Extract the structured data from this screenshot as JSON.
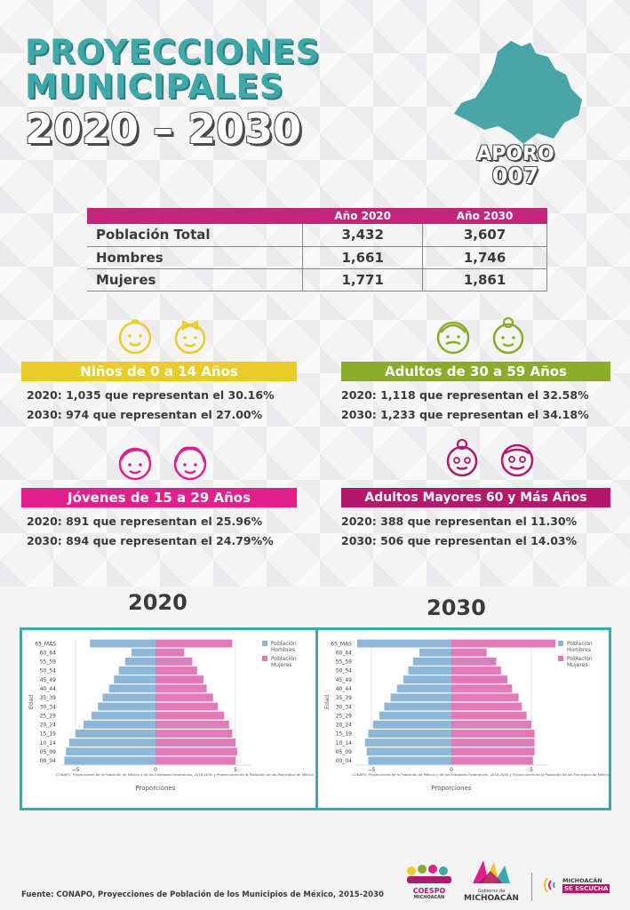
{
  "header": {
    "title_line1": "PROYECCIONES",
    "title_line2": "MUNICIPALES",
    "title_line3": "2020 – 2030",
    "municipio_name": "APORO",
    "municipio_code": "007"
  },
  "table": {
    "col_2020": "Año 2020",
    "col_2030": "Año 2030",
    "rows": [
      {
        "label": "Población Total",
        "v2020": "3,432",
        "v2030": "3,607"
      },
      {
        "label": "Hombres",
        "v2020": "1,661",
        "v2030": "1,746"
      },
      {
        "label": "Mujeres",
        "v2020": "1,771",
        "v2030": "1,861"
      }
    ]
  },
  "groups": {
    "ninos": {
      "title": "Niños de 0 a 14 Años",
      "color": "#e8cc2c",
      "line2020": "2020:  1,035 que representan el   30.16%",
      "line2030": "2030:  974 que representan el   27.00%"
    },
    "adultos": {
      "title": "Adultos de 30 a 59 Años",
      "color": "#8aac2a",
      "line2020": "2020:  1,118 que representan el   32.58%",
      "line2030": "2030:  1,233 que representan el   34.18%"
    },
    "jovenes": {
      "title": "Jóvenes de 15 a 29 Años",
      "color": "#e0208c",
      "line2020": "2020:  891  que representan el   25.96%",
      "line2030": "2030:  894 que representan el   24.79%%"
    },
    "mayores": {
      "title": "Adultos Mayores  60 y Más Años",
      "color": "#b3186c",
      "line2020": "2020:    388 que representan el   11.30%",
      "line2030": "2030:    506 que representan el   14.03%"
    }
  },
  "charts_titles": {
    "y2020": "2020",
    "y2030": "2030"
  },
  "chart_data": [
    {
      "type": "bar",
      "title": "2020",
      "orientation": "horizontal-pyramid",
      "ylabel": "Edad",
      "xlabel": "Proporciones",
      "xticks": [
        "−5",
        "0",
        "5"
      ],
      "xlim": [
        -6,
        6
      ],
      "legend_position": "top-right",
      "caption": "CONAPO. Proyecciones de la Población de México y de las Entidades Federativas, 2016-2050 y Proyecciones de la Población de los Municipios de México",
      "categories": [
        "65_MAS",
        "60_64",
        "55_59",
        "50_54",
        "45_49",
        "40_44",
        "35_39",
        "30_34",
        "25_29",
        "20_24",
        "15_19",
        "10_14",
        "05_09",
        "00_04"
      ],
      "series": [
        {
          "name": "Población Hombres",
          "color": "#8db7d8",
          "values": [
            -4.1,
            -1.5,
            -1.9,
            -2.3,
            -2.6,
            -2.9,
            -3.3,
            -3.6,
            -4.0,
            -4.5,
            -5.0,
            -5.4,
            -5.6,
            -5.7
          ]
        },
        {
          "name": "Población Mujeres",
          "color": "#e07ab8",
          "values": [
            4.8,
            1.8,
            2.3,
            2.6,
            3.0,
            3.2,
            3.6,
            3.9,
            4.3,
            4.6,
            4.8,
            5.0,
            5.1,
            5.0
          ]
        }
      ]
    },
    {
      "type": "bar",
      "title": "2030",
      "orientation": "horizontal-pyramid",
      "ylabel": "Edad",
      "xlabel": "Proporciones",
      "xticks": [
        "−5",
        "0",
        "5"
      ],
      "xlim": [
        -6,
        6
      ],
      "legend_position": "top-right",
      "caption": "CONAPO. Proyecciones de la Población de México y de las Entidades Federativas, 2016-2050 y Proyecciones de la Población de los Municipios de México",
      "categories": [
        "65_MAS",
        "60_64",
        "55_59",
        "50_54",
        "45_49",
        "40_44",
        "35_39",
        "30_34",
        "25_29",
        "20_24",
        "15_19",
        "10_14",
        "05_09",
        "00_04"
      ],
      "series": [
        {
          "name": "Población Hombres",
          "color": "#8db7d8",
          "values": [
            -5.9,
            -2.0,
            -2.4,
            -2.7,
            -3.0,
            -3.4,
            -3.8,
            -4.2,
            -4.5,
            -4.9,
            -5.2,
            -5.4,
            -5.3,
            -5.2
          ]
        },
        {
          "name": "Población Mujeres",
          "color": "#e07ab8",
          "values": [
            6.5,
            2.2,
            2.8,
            3.1,
            3.5,
            3.8,
            4.2,
            4.4,
            4.7,
            5.0,
            5.2,
            5.2,
            5.2,
            5.1
          ]
        }
      ]
    }
  ],
  "footer": {
    "source": "Fuente: CONAPO, Proyecciones de Población de los Municipios de México, 2015-2030",
    "logo1_line1": "COESPO",
    "logo1_line2": "MICHOACÁN",
    "logo2_line1": "Gobierno de",
    "logo2_line2": "MICHOACÁN",
    "logo3_line1": "MICHOACÁN",
    "logo3_line2": "SE ESCUCHA"
  }
}
